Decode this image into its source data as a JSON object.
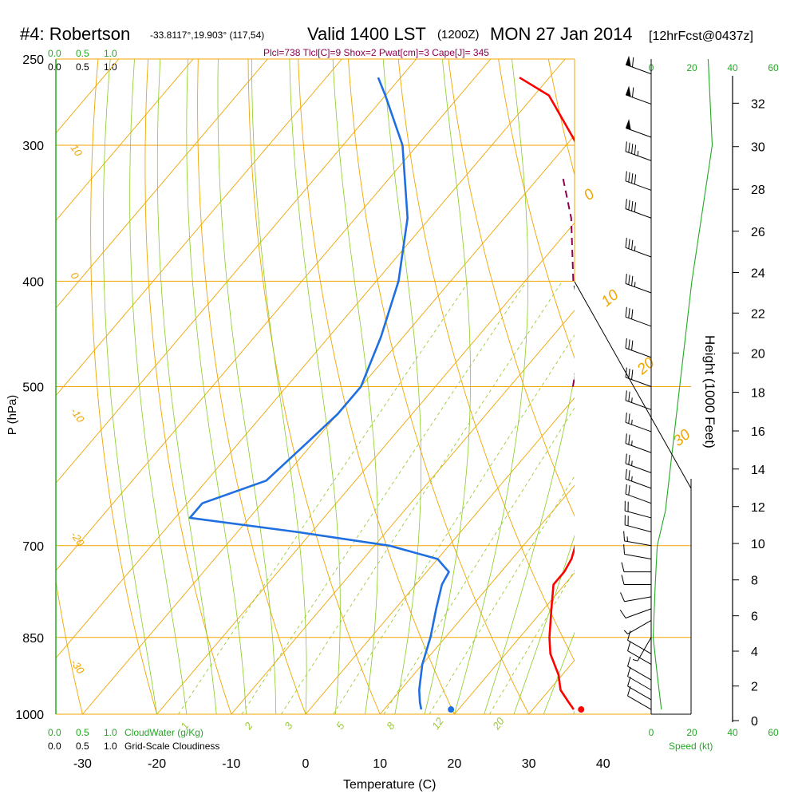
{
  "header": {
    "station": "#4: Robertson",
    "coords": "-33.8117°,19.903° (117,54)",
    "valid": "Valid 1400 LST",
    "utc": "(1200Z)",
    "date": "MON 27 Jan 2014",
    "forecast": "[12hrFcst@0437z]",
    "indices": "Plcl=738 Tlcl[C]=9 Shox=2 Pwat[cm]=3 Cape[J]= 345"
  },
  "colors": {
    "temp": "#ff0000",
    "dewpoint": "#1f6fe0",
    "parcel": "#8b0050",
    "isobar": "#f0a500",
    "dry_adiabat": "#f0a500",
    "moist_adiabat": "#88cc22",
    "mixing_ratio": "#99cc33",
    "height": "#22aa22",
    "text": "#000000",
    "green_text": "#22aa22"
  },
  "top_scales": {
    "cloudwater_ticks": [
      "0.0",
      "0.5",
      "1.0"
    ],
    "cloudiness_ticks": [
      "0.0",
      "0.5",
      "1.0"
    ],
    "speed_ticks": [
      "0",
      "20",
      "40",
      "60"
    ]
  },
  "bottom_scales": {
    "cloudwater_label": "CloudWater (g/Kg)",
    "cloudiness_label": "Grid-Scale Cloudiness",
    "speed_label": "Speed (kt)"
  },
  "chart_data": {
    "type": "line",
    "title": "#4: Robertson",
    "xlabel": "Temperature (C)",
    "ylabel": "P (hPa)",
    "y2label": "Height (1000 Feet)",
    "x_ticks": [
      -30,
      -20,
      -10,
      0,
      10,
      20,
      30,
      40
    ],
    "p_ticks": [
      250,
      300,
      400,
      500,
      700,
      850,
      1000
    ],
    "height_ticks": [
      0,
      2,
      4,
      6,
      8,
      10,
      12,
      14,
      16,
      18,
      20,
      22,
      24,
      26,
      28,
      30,
      32
    ],
    "xlim": [
      -33,
      35
    ],
    "plim": [
      250,
      1000
    ],
    "dry_adiabat_labels": [
      "-10",
      "0",
      "10",
      "20",
      "30"
    ],
    "mixing_ratio_labels": [
      "1",
      "2",
      "3",
      "5",
      "8",
      "12",
      "20"
    ],
    "isotherm_labels": [
      "10",
      "0",
      "-10",
      "-20",
      "-30"
    ],
    "series": [
      {
        "name": "Temperature",
        "points": [
          [
            35.5,
            990
          ],
          [
            34,
            975
          ],
          [
            31.5,
            950
          ],
          [
            29.5,
            920
          ],
          [
            26,
            880
          ],
          [
            24,
            850
          ],
          [
            21,
            800
          ],
          [
            18.5,
            760
          ],
          [
            18.5,
            740
          ],
          [
            18,
            720
          ],
          [
            17,
            700
          ],
          [
            15.5,
            670
          ],
          [
            14,
            640
          ],
          [
            12,
            610
          ],
          [
            7.5,
            560
          ],
          [
            2.2,
            500
          ],
          [
            -4.5,
            450
          ],
          [
            -10.5,
            400
          ],
          [
            -20,
            350
          ],
          [
            -28.5,
            300
          ],
          [
            -38,
            270
          ],
          [
            -44,
            260
          ]
        ]
      },
      {
        "name": "Dewpoint",
        "points": [
          [
            15,
            990
          ],
          [
            14,
            975
          ],
          [
            12.5,
            950
          ],
          [
            10,
            900
          ],
          [
            8,
            850
          ],
          [
            5.5,
            800
          ],
          [
            3.5,
            760
          ],
          [
            3,
            740
          ],
          [
            0,
            720
          ],
          [
            -8,
            700
          ],
          [
            -22,
            680
          ],
          [
            -38,
            660
          ],
          [
            -38,
            640
          ],
          [
            -32,
            610
          ],
          [
            -31,
            570
          ],
          [
            -30,
            530
          ],
          [
            -30,
            500
          ],
          [
            -33,
            450
          ],
          [
            -37,
            400
          ],
          [
            -43,
            350
          ],
          [
            -52,
            300
          ],
          [
            -60,
            270
          ],
          [
            -63,
            260
          ]
        ]
      },
      {
        "name": "Parcel",
        "points": [
          [
            -1.5,
            500
          ],
          [
            -7,
            440
          ],
          [
            -13.5,
            400
          ],
          [
            -21,
            350
          ],
          [
            -27,
            320
          ]
        ]
      }
    ],
    "surface_points": [
      {
        "name": "Surface temperature",
        "t": 36.5,
        "p": 990
      },
      {
        "name": "Surface dewpoint",
        "t": 19,
        "p": 990
      }
    ],
    "height_profile": [
      [
        0.3,
        985
      ],
      [
        4,
        860
      ],
      [
        6,
        800
      ],
      [
        8,
        745
      ],
      [
        10,
        700
      ],
      [
        12,
        640
      ],
      [
        14,
        590
      ],
      [
        16,
        545
      ],
      [
        18,
        500
      ],
      [
        20,
        465
      ],
      [
        22,
        425
      ],
      [
        24,
        395
      ],
      [
        26,
        365
      ],
      [
        28,
        335
      ],
      [
        30,
        310
      ],
      [
        32,
        285
      ]
    ],
    "wind_speed_profile": [
      [
        28,
        250
      ],
      [
        30,
        300
      ],
      [
        20,
        400
      ],
      [
        14,
        500
      ],
      [
        7,
        650
      ],
      [
        3,
        700
      ],
      [
        2,
        760
      ],
      [
        1,
        850
      ],
      [
        3,
        920
      ],
      [
        5,
        990
      ]
    ],
    "wind_barbs_kt": [
      [
        990,
        10,
        300
      ],
      [
        970,
        10,
        300
      ],
      [
        950,
        10,
        300
      ],
      [
        930,
        10,
        300
      ],
      [
        900,
        10,
        300
      ],
      [
        880,
        10,
        300
      ],
      [
        850,
        5,
        210
      ],
      [
        820,
        5,
        240
      ],
      [
        800,
        10,
        250
      ],
      [
        780,
        10,
        260
      ],
      [
        760,
        10,
        270
      ],
      [
        740,
        10,
        270
      ],
      [
        720,
        10,
        280
      ],
      [
        700,
        15,
        280
      ],
      [
        680,
        20,
        285
      ],
      [
        660,
        20,
        285
      ],
      [
        640,
        20,
        290
      ],
      [
        620,
        25,
        290
      ],
      [
        600,
        25,
        290
      ],
      [
        575,
        25,
        290
      ],
      [
        550,
        25,
        290
      ],
      [
        525,
        25,
        290
      ],
      [
        500,
        30,
        290
      ],
      [
        470,
        30,
        290
      ],
      [
        440,
        30,
        290
      ],
      [
        410,
        35,
        290
      ],
      [
        380,
        35,
        290
      ],
      [
        350,
        40,
        290
      ],
      [
        330,
        40,
        290
      ],
      [
        310,
        45,
        290
      ],
      [
        295,
        50,
        290
      ],
      [
        275,
        60,
        290
      ],
      [
        258,
        60,
        290
      ]
    ]
  }
}
